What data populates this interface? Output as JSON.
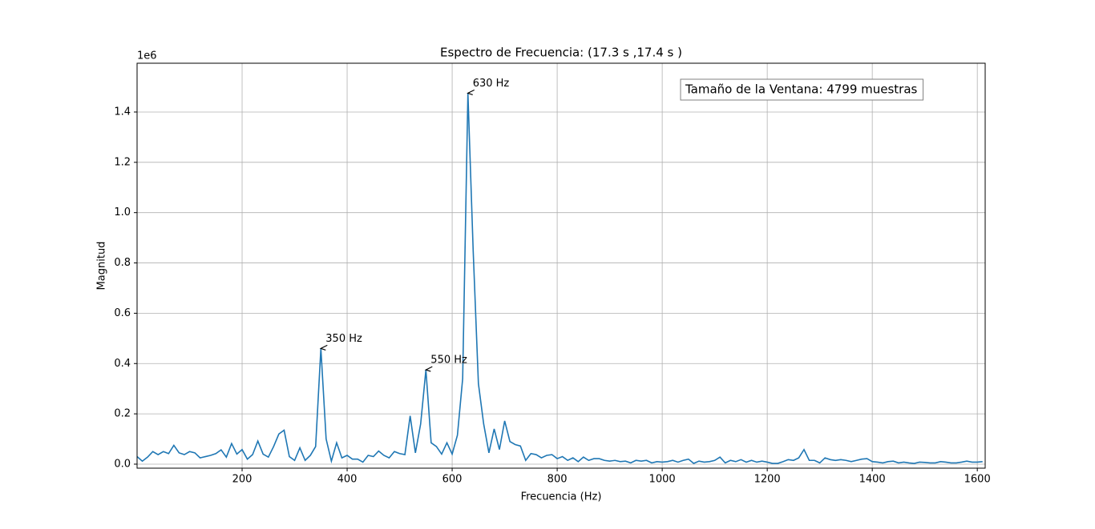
{
  "chart_data": {
    "type": "line",
    "title": "Espectro de Frecuencia: (17.3 s ,17.4 s )",
    "x_label": "Frecuencia (Hz)",
    "y_label": "Magnitud",
    "y_offset_text": "1e6",
    "text_box": "Tamaño de la Ventana: 4799 muestras",
    "color": "#1f77b4",
    "grid": true,
    "xlim": [
      0,
      1615
    ],
    "ylim": [
      -16000,
      1594000
    ],
    "xticks": [
      200,
      400,
      600,
      800,
      1000,
      1200,
      1400,
      1600
    ],
    "yticks": [
      {
        "value": 0,
        "label": "0.0"
      },
      {
        "value": 200000,
        "label": "0.2"
      },
      {
        "value": 400000,
        "label": "0.4"
      },
      {
        "value": 600000,
        "label": "0.6"
      },
      {
        "value": 800000,
        "label": "0.8"
      },
      {
        "value": 1000000,
        "label": "1.0"
      },
      {
        "value": 1200000,
        "label": "1.2"
      },
      {
        "value": 1400000,
        "label": "1.4"
      }
    ],
    "x": [
      0,
      10,
      20,
      30,
      40,
      50,
      60,
      70,
      80,
      90,
      100,
      110,
      120,
      130,
      140,
      150,
      160,
      170,
      180,
      190,
      200,
      210,
      220,
      230,
      240,
      250,
      260,
      270,
      280,
      290,
      300,
      310,
      320,
      330,
      340,
      350,
      360,
      370,
      380,
      390,
      400,
      410,
      420,
      430,
      440,
      450,
      460,
      470,
      480,
      490,
      500,
      510,
      520,
      530,
      540,
      550,
      560,
      570,
      580,
      590,
      600,
      610,
      620,
      630,
      640,
      650,
      660,
      670,
      680,
      690,
      700,
      710,
      720,
      730,
      740,
      750,
      760,
      770,
      780,
      790,
      800,
      810,
      820,
      830,
      840,
      850,
      860,
      870,
      880,
      890,
      900,
      910,
      920,
      930,
      940,
      950,
      960,
      970,
      980,
      990,
      1000,
      1010,
      1020,
      1030,
      1040,
      1050,
      1060,
      1070,
      1080,
      1090,
      1100,
      1110,
      1120,
      1130,
      1140,
      1150,
      1160,
      1170,
      1180,
      1190,
      1200,
      1210,
      1220,
      1230,
      1240,
      1250,
      1260,
      1270,
      1280,
      1290,
      1300,
      1310,
      1320,
      1330,
      1340,
      1350,
      1360,
      1370,
      1380,
      1390,
      1400,
      1410,
      1420,
      1430,
      1440,
      1450,
      1460,
      1470,
      1480,
      1490,
      1500,
      1510,
      1520,
      1530,
      1540,
      1550,
      1560,
      1570,
      1580,
      1590,
      1600,
      1610
    ],
    "values": [
      30000,
      12000,
      28000,
      50000,
      38000,
      50000,
      42000,
      75000,
      45000,
      38000,
      50000,
      45000,
      25000,
      30000,
      35000,
      42000,
      57000,
      28000,
      82000,
      40000,
      58000,
      20000,
      38000,
      92000,
      40000,
      28000,
      70000,
      120000,
      135000,
      30000,
      15000,
      65000,
      15000,
      35000,
      70000,
      460000,
      100000,
      12000,
      85000,
      25000,
      35000,
      20000,
      20000,
      8000,
      35000,
      30000,
      52000,
      35000,
      25000,
      50000,
      42000,
      38000,
      192000,
      45000,
      160000,
      375000,
      85000,
      70000,
      40000,
      85000,
      40000,
      115000,
      340000,
      1475000,
      850000,
      320000,
      160000,
      45000,
      140000,
      58000,
      172000,
      90000,
      78000,
      72000,
      15000,
      42000,
      38000,
      25000,
      35000,
      38000,
      22000,
      30000,
      15000,
      25000,
      10000,
      28000,
      15000,
      22000,
      22000,
      15000,
      12000,
      15000,
      10000,
      12000,
      5000,
      15000,
      12000,
      15000,
      5000,
      10000,
      8000,
      10000,
      15000,
      8000,
      15000,
      20000,
      3000,
      12000,
      8000,
      10000,
      15000,
      28000,
      5000,
      15000,
      10000,
      18000,
      8000,
      15000,
      8000,
      12000,
      8000,
      3000,
      3000,
      10000,
      18000,
      15000,
      25000,
      58000,
      15000,
      15000,
      5000,
      25000,
      18000,
      15000,
      18000,
      15000,
      10000,
      15000,
      20000,
      22000,
      10000,
      8000,
      5000,
      10000,
      12000,
      5000,
      8000,
      5000,
      3000,
      8000,
      7000,
      5000,
      5000,
      10000,
      8000,
      5000,
      5000,
      8000,
      12000,
      8000,
      8000,
      10000
    ],
    "annotations": [
      {
        "text": "350 Hz",
        "x": 350,
        "y": 460000
      },
      {
        "text": "550 Hz",
        "x": 550,
        "y": 375000
      },
      {
        "text": "630 Hz",
        "x": 630,
        "y": 1475000
      }
    ]
  }
}
